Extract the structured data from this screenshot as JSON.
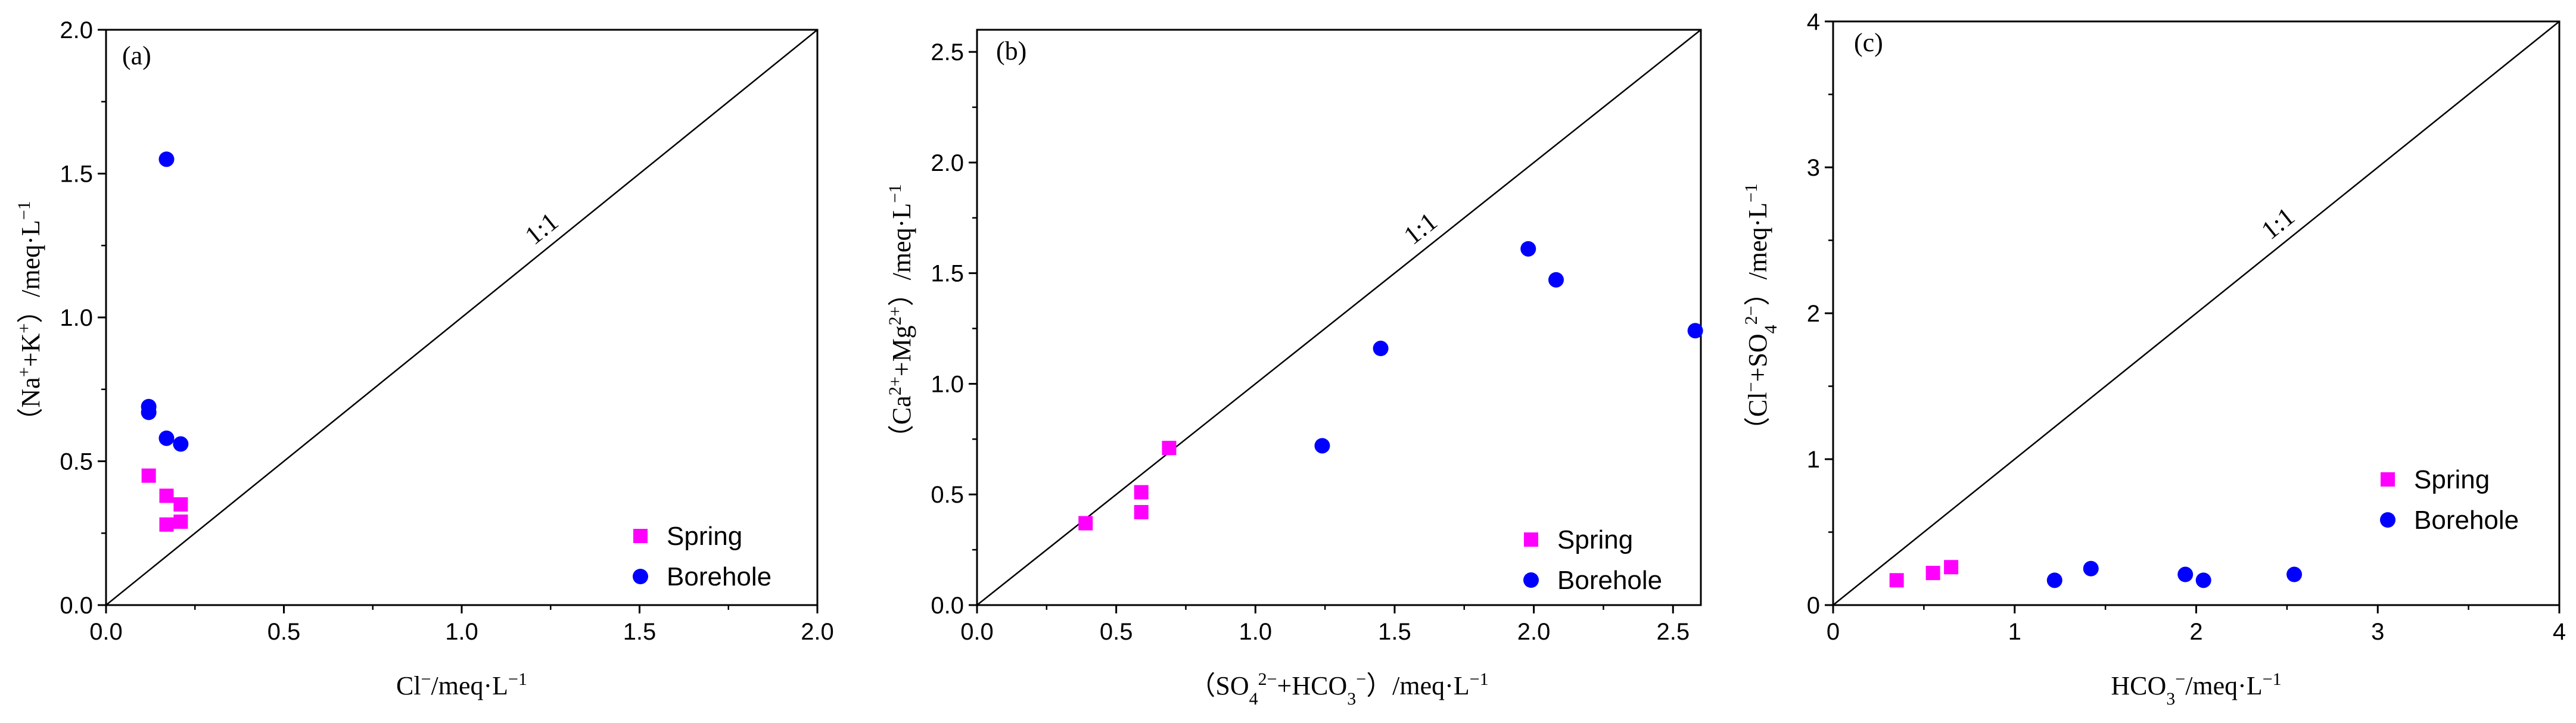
{
  "colors": {
    "spring": "#ff00ff",
    "borehole": "#0000ff",
    "axis": "#000000"
  },
  "chart_data": [
    {
      "type": "scatter",
      "panel": "(a)",
      "xlabel_parts": [
        [
          "Cl",
          "n"
        ],
        [
          "−",
          "sup"
        ],
        [
          "/meq·L",
          "n"
        ],
        [
          "−1",
          "sup"
        ]
      ],
      "ylabel_parts": [
        [
          "（Na",
          "n"
        ],
        [
          "+",
          "sup"
        ],
        [
          "+K",
          "n"
        ],
        [
          "+",
          "sup"
        ],
        [
          "）/meq·L",
          "n"
        ],
        [
          "−1",
          "sup"
        ]
      ],
      "xlim": [
        0,
        2.0
      ],
      "ylim": [
        0,
        2.0
      ],
      "xticks": [
        0,
        0.5,
        1.0,
        1.5,
        2.0
      ],
      "xtick_labels": [
        "0.0",
        "0.5",
        "1.0",
        "1.5",
        "2.0"
      ],
      "yticks": [
        0,
        0.5,
        1.0,
        1.5,
        2.0
      ],
      "ytick_labels": [
        "0.0",
        "0.5",
        "1.0",
        "1.5",
        "2.0"
      ],
      "line_label": "1:1",
      "legend_position": "bottom-right",
      "series": [
        {
          "name": "Spring",
          "marker": "square",
          "x": [
            0.12,
            0.17,
            0.21,
            0.21,
            0.17
          ],
          "y": [
            0.45,
            0.38,
            0.35,
            0.29,
            0.28
          ]
        },
        {
          "name": "Borehole",
          "marker": "circle",
          "x": [
            0.17,
            0.12,
            0.12,
            0.17,
            0.21
          ],
          "y": [
            1.55,
            0.69,
            0.67,
            0.58,
            0.56
          ]
        }
      ]
    },
    {
      "type": "scatter",
      "panel": "(b)",
      "xlabel_parts": [
        [
          "（SO",
          "n"
        ],
        [
          "4",
          "sub"
        ],
        [
          "2−",
          "sup"
        ],
        [
          "+HCO",
          "n"
        ],
        [
          "3",
          "sub"
        ],
        [
          "−",
          "sup"
        ],
        [
          "）/meq·L",
          "n"
        ],
        [
          "−1",
          "sup"
        ]
      ],
      "ylabel_parts": [
        [
          "（Ca",
          "n"
        ],
        [
          "2+",
          "sup"
        ],
        [
          "+Mg",
          "n"
        ],
        [
          "2+",
          "sup"
        ],
        [
          "）/meq·L",
          "n"
        ],
        [
          "−1",
          "sup"
        ]
      ],
      "xlim": [
        0,
        2.6
      ],
      "ylim": [
        0,
        2.6
      ],
      "xticks": [
        0,
        0.5,
        1.0,
        1.5,
        2.0,
        2.5
      ],
      "xtick_labels": [
        "0.0",
        "0.5",
        "1.0",
        "1.5",
        "2.0",
        "2.5"
      ],
      "yticks": [
        0,
        0.5,
        1.0,
        1.5,
        2.0,
        2.5
      ],
      "ytick_labels": [
        "0.0",
        "0.5",
        "1.0",
        "1.5",
        "2.0",
        "2.5"
      ],
      "line_label": "1:1",
      "legend_position": "bottom-right",
      "series": [
        {
          "name": "Spring",
          "marker": "square",
          "x": [
            0.39,
            0.59,
            0.59,
            0.69
          ],
          "y": [
            0.37,
            0.51,
            0.42,
            0.71
          ]
        },
        {
          "name": "Borehole",
          "marker": "circle",
          "x": [
            1.24,
            1.45,
            1.98,
            2.08,
            2.58
          ],
          "y": [
            0.72,
            1.16,
            1.61,
            1.47,
            1.24
          ]
        }
      ]
    },
    {
      "type": "scatter",
      "panel": "(c)",
      "xlabel_parts": [
        [
          "HCO",
          "n"
        ],
        [
          "3",
          "sub"
        ],
        [
          "−",
          "sup"
        ],
        [
          "/meq·L",
          "n"
        ],
        [
          "−1",
          "sup"
        ]
      ],
      "ylabel_parts": [
        [
          "（Cl",
          "n"
        ],
        [
          "−",
          "sup"
        ],
        [
          "+SO",
          "n"
        ],
        [
          "4",
          "sub"
        ],
        [
          "2−",
          "sup"
        ],
        [
          "）/meq·L",
          "n"
        ],
        [
          "−1",
          "sup"
        ]
      ],
      "xlim": [
        0,
        4
      ],
      "ylim": [
        0,
        4
      ],
      "xticks": [
        0,
        1,
        2,
        3,
        4
      ],
      "xtick_labels": [
        "0",
        "1",
        "2",
        "3",
        "4"
      ],
      "yticks": [
        0,
        1,
        2,
        3,
        4
      ],
      "ytick_labels": [
        "0",
        "1",
        "2",
        "3",
        "4"
      ],
      "line_label": "1:1",
      "legend_position": "bottom-right",
      "series": [
        {
          "name": "Spring",
          "marker": "square",
          "x": [
            0.35,
            0.55,
            0.65
          ],
          "y": [
            0.17,
            0.22,
            0.26
          ]
        },
        {
          "name": "Borehole",
          "marker": "circle",
          "x": [
            1.22,
            1.42,
            1.94,
            2.04,
            2.54
          ],
          "y": [
            0.17,
            0.25,
            0.21,
            0.17,
            0.21
          ]
        }
      ]
    }
  ]
}
